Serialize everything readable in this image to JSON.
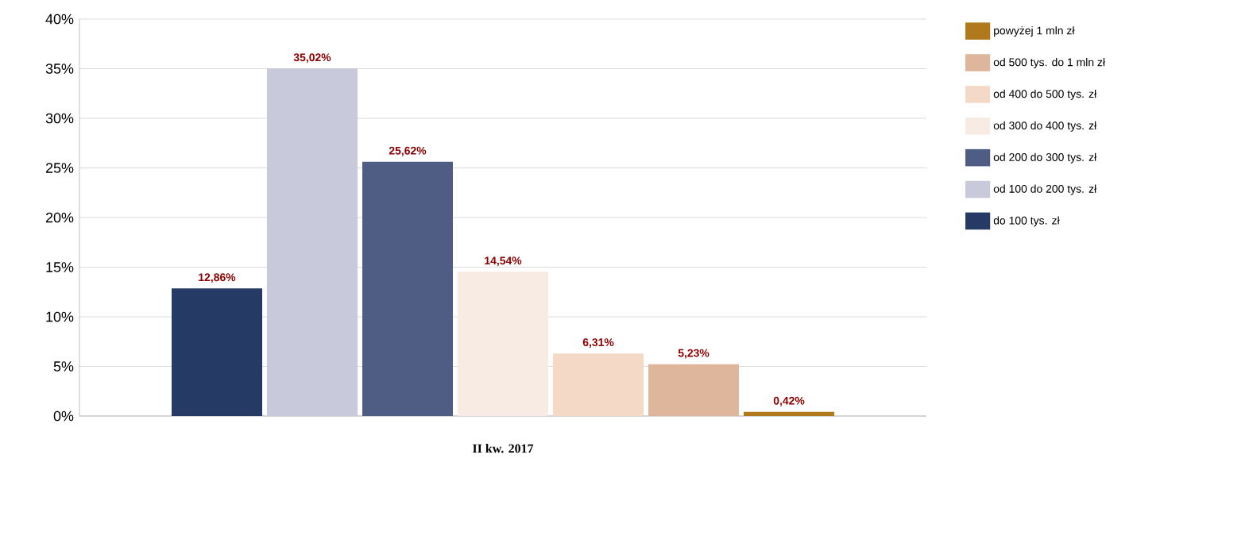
{
  "chart_data": {
    "type": "bar",
    "categories": [
      "II kw. 2017"
    ],
    "series": [
      {
        "name": "do 100 tys. zł",
        "color": "#253a64",
        "values": [
          12.86
        ],
        "value_labels": [
          "12,86%"
        ]
      },
      {
        "name": "od 100 do 200 tys. zł",
        "color": "#c8cadc",
        "values": [
          35.02
        ],
        "value_labels": [
          "35,02%"
        ]
      },
      {
        "name": "od 200 do 300 tys. zł",
        "color": "#4f5d85",
        "values": [
          25.62
        ],
        "value_labels": [
          "25,62%"
        ]
      },
      {
        "name": "od 300 do 400 tys. zł",
        "color": "#f8ebe3",
        "values": [
          14.54
        ],
        "value_labels": [
          "14,54%"
        ]
      },
      {
        "name": "od 400 do 500 tys. zł",
        "color": "#f4d9c6",
        "values": [
          6.31
        ],
        "value_labels": [
          "6,31%"
        ]
      },
      {
        "name": "od 500 tys. do 1 mln zł",
        "color": "#ddb69c",
        "values": [
          5.23
        ],
        "value_labels": [
          "5,23%"
        ]
      },
      {
        "name": "powyżej 1 mln zł",
        "color": "#b07a1c",
        "values": [
          0.42
        ],
        "value_labels": [
          "0,42%"
        ]
      }
    ],
    "ylim": [
      0,
      40
    ],
    "yticks": [
      {
        "value": 0,
        "label": "0%"
      },
      {
        "value": 5,
        "label": "5%"
      },
      {
        "value": 10,
        "label": "10%"
      },
      {
        "value": 15,
        "label": "15%"
      },
      {
        "value": 20,
        "label": "20%"
      },
      {
        "value": 25,
        "label": "25%"
      },
      {
        "value": 30,
        "label": "30%"
      },
      {
        "value": 35,
        "label": "35%"
      },
      {
        "value": 40,
        "label": "40%"
      }
    ],
    "grid": "y",
    "legend": "right"
  }
}
